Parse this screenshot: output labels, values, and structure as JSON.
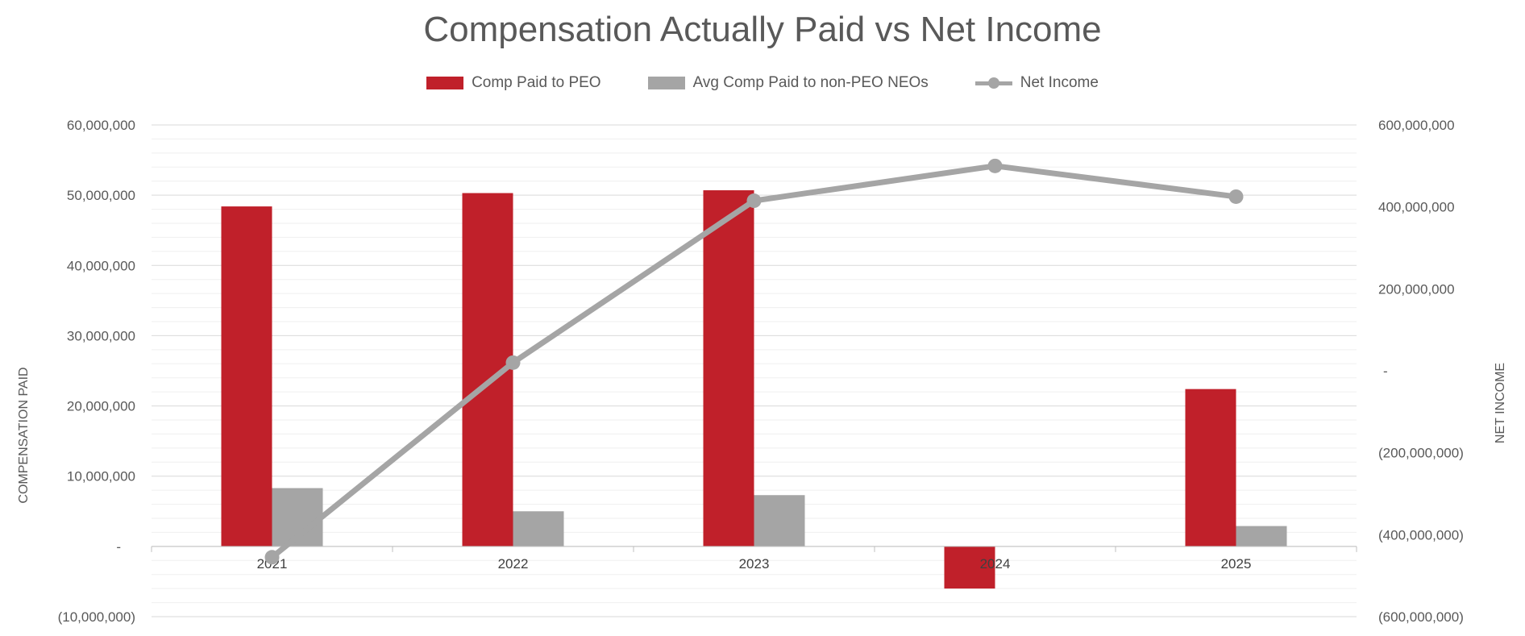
{
  "chart_data": {
    "type": "bar",
    "title": "Compensation Actually Paid vs Net Income",
    "categories": [
      "2021",
      "2022",
      "2023",
      "2024",
      "2025"
    ],
    "series": [
      {
        "name": "Comp Paid to PEO",
        "kind": "bar",
        "axis": "left",
        "color": "#C0202A",
        "values": [
          48400000,
          50300000,
          50700000,
          -6000000,
          22400000
        ]
      },
      {
        "name": "Avg Comp Paid to non-PEO NEOs",
        "kind": "bar",
        "axis": "left",
        "color": "#A5A5A5",
        "values": [
          8300000,
          5000000,
          7300000,
          0,
          2900000
        ]
      },
      {
        "name": "Net Income",
        "kind": "line",
        "axis": "right",
        "color": "#A5A5A5",
        "values": [
          -455000000,
          20000000,
          415000000,
          500000000,
          425000000
        ]
      }
    ],
    "ylabel": "COMPENSATION PAID",
    "y2label": "NET INCOME",
    "ylim": [
      -10000000,
      60000000
    ],
    "y2lim": [
      -600000000,
      600000000
    ],
    "yticks": [
      "(10,000,000)",
      "-",
      "10,000,000",
      "20,000,000",
      "30,000,000",
      "40,000,000",
      "50,000,000",
      "60,000,000"
    ],
    "y2ticks": [
      "(600,000,000)",
      "(400,000,000)",
      "(200,000,000)",
      "-",
      "200,000,000",
      "400,000,000",
      "600,000,000"
    ],
    "grid": true,
    "legend_position": "top"
  }
}
